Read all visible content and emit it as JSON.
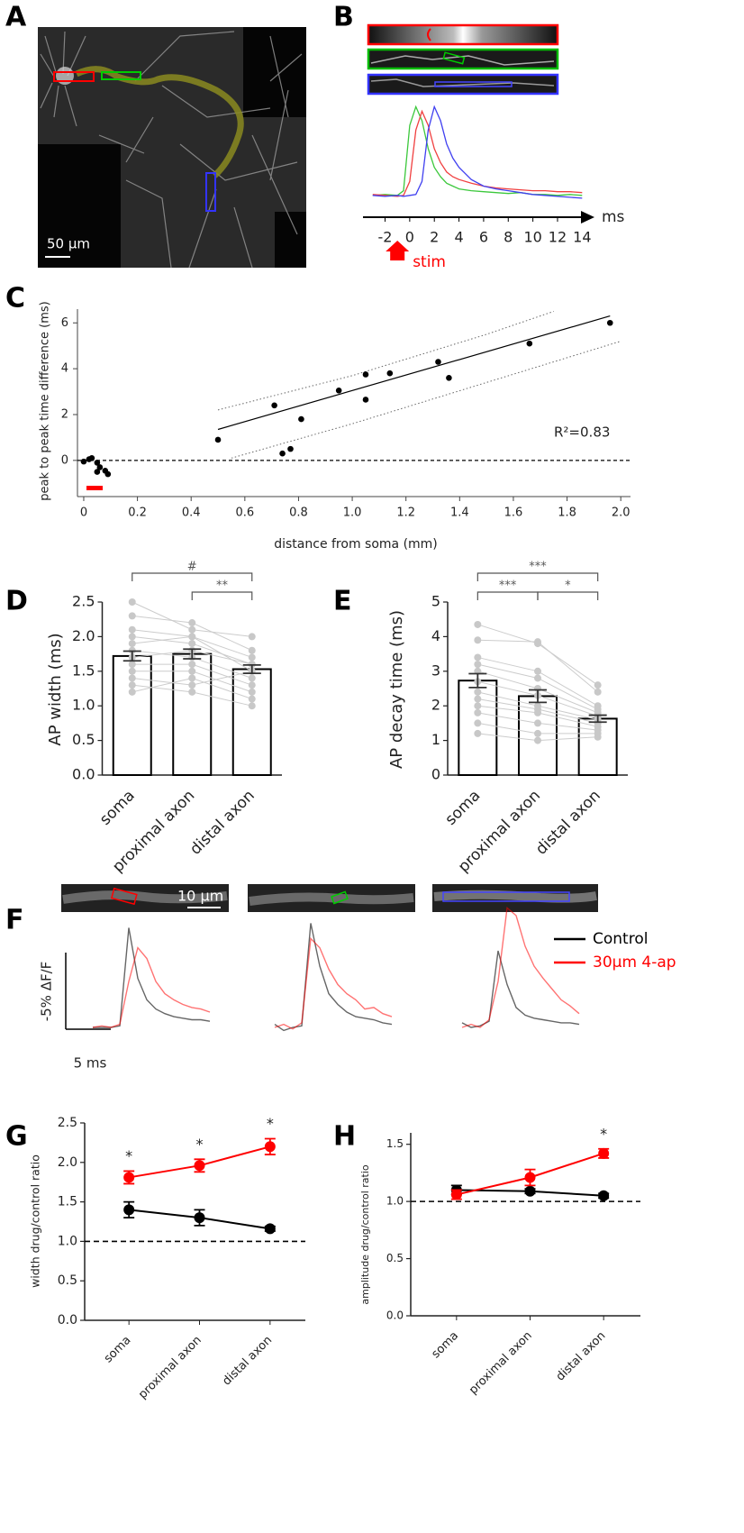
{
  "figure": {
    "panel_labels": [
      "A",
      "B",
      "C",
      "D",
      "E",
      "F",
      "G",
      "H"
    ],
    "scale_bars": [
      "50 µm",
      "10 µm"
    ]
  },
  "chart_data": [
    {
      "type": "line",
      "x": [
        -3,
        -2,
        -1,
        -0.5,
        0,
        0.5,
        1,
        1.5,
        2,
        2.5,
        3,
        3.5,
        4,
        5,
        6,
        7,
        8,
        9,
        10,
        11,
        12,
        13,
        14
      ],
      "series": [
        {
          "color": "#3cc83c",
          "values": [
            0.05,
            0.06,
            0.05,
            0.1,
            0.8,
            1.0,
            0.85,
            0.55,
            0.35,
            0.25,
            0.18,
            0.15,
            0.12,
            0.1,
            0.09,
            0.08,
            0.07,
            0.08,
            0.06,
            0.06,
            0.05,
            0.06,
            0.05
          ]
        },
        {
          "color": "#f04040",
          "values": [
            0.06,
            0.05,
            0.04,
            0.05,
            0.2,
            0.75,
            0.95,
            0.8,
            0.55,
            0.4,
            0.3,
            0.25,
            0.22,
            0.18,
            0.15,
            0.13,
            0.12,
            0.11,
            0.1,
            0.1,
            0.09,
            0.09,
            0.08
          ]
        },
        {
          "color": "#4040f0",
          "values": [
            0.05,
            0.04,
            0.05,
            0.04,
            0.05,
            0.06,
            0.2,
            0.75,
            1.0,
            0.85,
            0.6,
            0.45,
            0.35,
            0.22,
            0.15,
            0.12,
            0.1,
            0.08,
            0.06,
            0.05,
            0.04,
            0.03,
            0.02
          ]
        }
      ],
      "xlim": [
        -3.5,
        15
      ],
      "xticks": [
        -2,
        0,
        2,
        4,
        6,
        8,
        10,
        12,
        14
      ],
      "xlabel": "ms",
      "ylim": [
        0,
        1.1
      ],
      "annotation": "stim"
    },
    {
      "type": "scatter",
      "xlabel": "distance from soma (mm)",
      "ylabel": "peak to peak time difference (ms)",
      "x": [
        0.0,
        0.02,
        0.03,
        0.05,
        0.05,
        0.06,
        0.08,
        0.09,
        0.5,
        0.71,
        0.74,
        0.77,
        0.81,
        0.95,
        1.05,
        1.05,
        1.14,
        1.32,
        1.36,
        1.66,
        1.96
      ],
      "y": [
        -0.05,
        0.05,
        0.1,
        -0.1,
        -0.5,
        -0.3,
        -0.45,
        -0.6,
        0.9,
        2.4,
        0.3,
        0.5,
        1.8,
        3.05,
        3.75,
        2.65,
        3.8,
        4.3,
        3.6,
        5.1,
        6.0
      ],
      "color": "#000000",
      "xlim": [
        -0.02,
        2.1
      ],
      "ylim": [
        -1.5,
        6.6
      ],
      "xticks": [
        0,
        0.2,
        0.4,
        0.6,
        0.8,
        {
          "value": 1,
          "label": "1.0"
        },
        1.2,
        1.4,
        1.6,
        1.8,
        {
          "value": 2,
          "label": "2.0"
        }
      ],
      "yticks": [
        0,
        2,
        4,
        6
      ],
      "reference_line": 0,
      "annotation": "R²=0.83",
      "fit": {
        "x": [
          0.5,
          1.96
        ],
        "y": [
          1.35,
          6.3
        ]
      },
      "ci_upper": {
        "x": [
          0.5,
          1.0,
          1.5,
          1.75
        ],
        "y": [
          2.2,
          3.7,
          5.5,
          6.5
        ]
      },
      "ci_lower": {
        "x": [
          0.55,
          1.0,
          1.5,
          2.0
        ],
        "y": [
          0.1,
          1.6,
          3.4,
          5.2
        ]
      }
    },
    {
      "type": "bar",
      "ylabel": "AP width (ms)",
      "categories": [
        "soma",
        "proximal axon",
        "distal axon"
      ],
      "values": [
        1.72,
        1.75,
        1.53
      ],
      "errors": [
        0.07,
        0.07,
        0.06
      ],
      "color": "#ffffff",
      "individual": [
        [
          2.5,
          2.1,
          2.0
        ],
        [
          2.3,
          2.2,
          1.8
        ],
        [
          2.1,
          2.0,
          1.7
        ],
        [
          2.0,
          1.9,
          1.6
        ],
        [
          1.9,
          2.0,
          1.5
        ],
        [
          1.8,
          1.7,
          1.4
        ],
        [
          1.7,
          1.8,
          1.6
        ],
        [
          1.6,
          1.6,
          1.3
        ],
        [
          1.5,
          1.5,
          1.2
        ],
        [
          1.4,
          1.3,
          1.5
        ],
        [
          1.3,
          1.2,
          1.0
        ],
        [
          1.2,
          1.4,
          1.1
        ]
      ],
      "ylim": [
        0,
        2.5
      ],
      "yticks": [
        {
          "value": 0,
          "label": "0.0"
        },
        0.5,
        {
          "value": 1,
          "label": "1.0"
        },
        1.5,
        {
          "value": 2,
          "label": "2.0"
        },
        2.5
      ],
      "significance": [
        {
          "from": 0,
          "to": 2,
          "text": "#"
        },
        {
          "from": 1,
          "to": 2,
          "text": "**"
        }
      ]
    },
    {
      "type": "bar",
      "ylabel": "AP decay time (ms)",
      "categories": [
        "soma",
        "proximal axon",
        "distal axon"
      ],
      "values": [
        2.73,
        2.28,
        1.63
      ],
      "errors": [
        0.2,
        0.18,
        0.1
      ],
      "color": "#ffffff",
      "individual": [
        [
          4.35,
          3.8,
          2.6
        ],
        [
          3.9,
          3.85,
          2.4
        ],
        [
          3.4,
          3.0,
          2.0
        ],
        [
          3.2,
          2.8,
          1.9
        ],
        [
          3.0,
          2.5,
          1.8
        ],
        [
          2.7,
          2.3,
          1.7
        ],
        [
          2.4,
          2.0,
          1.6
        ],
        [
          2.2,
          1.9,
          1.5
        ],
        [
          2.0,
          1.8,
          1.4
        ],
        [
          1.8,
          1.5,
          1.3
        ],
        [
          1.5,
          1.2,
          1.2
        ],
        [
          1.2,
          1.0,
          1.1
        ]
      ],
      "ylim": [
        0,
        5
      ],
      "yticks": [
        0,
        1,
        2,
        3,
        4,
        5
      ],
      "significance": [
        {
          "from": 0,
          "to": 1,
          "text": "***"
        },
        {
          "from": 1,
          "to": 2,
          "text": "*"
        },
        {
          "from": 0,
          "to": 2,
          "text": "***"
        }
      ]
    },
    {
      "type": "traces",
      "x": [
        0,
        1,
        2,
        3,
        4,
        5,
        6,
        7,
        8,
        9,
        10,
        11,
        12,
        13
      ],
      "series": [
        {
          "name": "Control",
          "color": "#000000",
          "values": [
            [
              0,
              0,
              0,
              0.1,
              6.5,
              3.2,
              1.8,
              1.2,
              0.9,
              0.7,
              0.6,
              0.5,
              0.5,
              0.4
            ],
            [
              0.2,
              -0.2,
              0,
              0.1,
              6.8,
              4,
              2.2,
              1.5,
              1.0,
              0.7,
              0.6,
              0.5,
              0.3,
              0.2
            ],
            [
              0.3,
              0,
              0.1,
              0.4,
              5,
              2.8,
              1.3,
              0.8,
              0.6,
              0.5,
              0.4,
              0.3,
              0.3,
              0.2
            ]
          ]
        },
        {
          "name": "30µm 4-ap",
          "color": "#ff0000",
          "values": [
            [
              0,
              0.1,
              0,
              0.2,
              3,
              5.2,
              4.5,
              3,
              2.2,
              1.8,
              1.5,
              1.3,
              1.2,
              1.0
            ],
            [
              0,
              0.2,
              -0.1,
              0.3,
              5.8,
              5.2,
              3.8,
              2.8,
              2.2,
              1.8,
              1.2,
              1.3,
              0.9,
              0.7
            ],
            [
              0,
              0.2,
              0,
              0.5,
              3,
              7.8,
              7.3,
              5.3,
              4,
              3.2,
              2.5,
              1.8,
              1.4,
              0.9
            ]
          ]
        }
      ],
      "scale_bar": {
        "y": 5,
        "y_label": "-5% ΔF/F",
        "x": 5,
        "x_label": "5 ms"
      }
    },
    {
      "type": "line",
      "ylabel": "width drug/control ratio",
      "categories": [
        "soma",
        "proximal axon",
        "distal axon"
      ],
      "series": [
        {
          "color": "#000000",
          "values": [
            1.4,
            1.3,
            1.16
          ],
          "errors": [
            0.1,
            0.1,
            0.03
          ]
        },
        {
          "color": "#ff0000",
          "values": [
            1.81,
            1.96,
            2.2
          ],
          "errors": [
            0.08,
            0.08,
            0.1
          ]
        }
      ],
      "ylim": [
        0,
        2.5
      ],
      "yticks": [
        {
          "value": 0,
          "label": "0.0"
        },
        0.5,
        {
          "value": 1,
          "label": "1.0"
        },
        1.5,
        {
          "value": 2,
          "label": "2.0"
        },
        2.5
      ],
      "reference_line": 1,
      "annotations": [
        "*",
        "*",
        "*"
      ]
    },
    {
      "type": "line",
      "ylabel": "amplitude drug/control ratio",
      "categories": [
        "soma",
        "proximal axon",
        "distal axon"
      ],
      "series": [
        {
          "color": "#000000",
          "values": [
            1.1,
            1.09,
            1.05
          ],
          "errors": [
            0.04,
            0.02,
            0.02
          ]
        },
        {
          "color": "#ff0000",
          "values": [
            1.06,
            1.21,
            1.42
          ],
          "errors": [
            0.04,
            0.07,
            0.04
          ]
        }
      ],
      "ylim": [
        0,
        1.6
      ],
      "yticks": [
        {
          "value": 0,
          "label": "0.0"
        },
        0.5,
        {
          "value": 1,
          "label": "1.0"
        },
        1.5
      ],
      "reference_line": 1,
      "annotations": [
        null,
        null,
        "*"
      ]
    }
  ]
}
